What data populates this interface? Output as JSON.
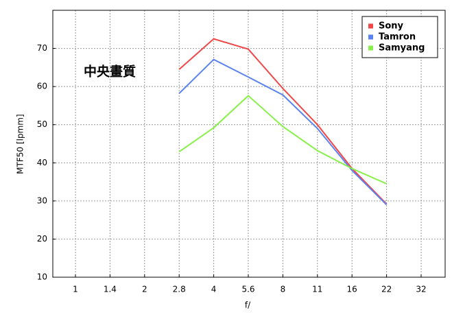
{
  "chart_data": {
    "type": "line",
    "annotation": "中央畫質",
    "xlabel": "f/",
    "ylabel": "MTF50 [lpmm]",
    "categories": [
      "1",
      "1.4",
      "2",
      "2.8",
      "4",
      "5.6",
      "8",
      "11",
      "16",
      "22",
      "32"
    ],
    "series": [
      {
        "name": "Sony",
        "color": "#f04848",
        "values": [
          null,
          null,
          null,
          64.5,
          72.5,
          69.8,
          59.5,
          50,
          38.5,
          29.2,
          null
        ]
      },
      {
        "name": "Tamron",
        "color": "#5a82f0",
        "values": [
          null,
          null,
          null,
          58.2,
          67.1,
          62.5,
          57.8,
          49,
          38,
          29,
          null
        ]
      },
      {
        "name": "Samyang",
        "color": "#88f04a",
        "values": [
          null,
          null,
          null,
          42.9,
          49.2,
          57.6,
          49.5,
          43.2,
          38.5,
          34.5,
          null
        ]
      }
    ],
    "ylim": [
      10,
      80
    ],
    "yticks": [
      10,
      20,
      30,
      40,
      50,
      60,
      70
    ],
    "grid": true,
    "legend": "upper right"
  }
}
